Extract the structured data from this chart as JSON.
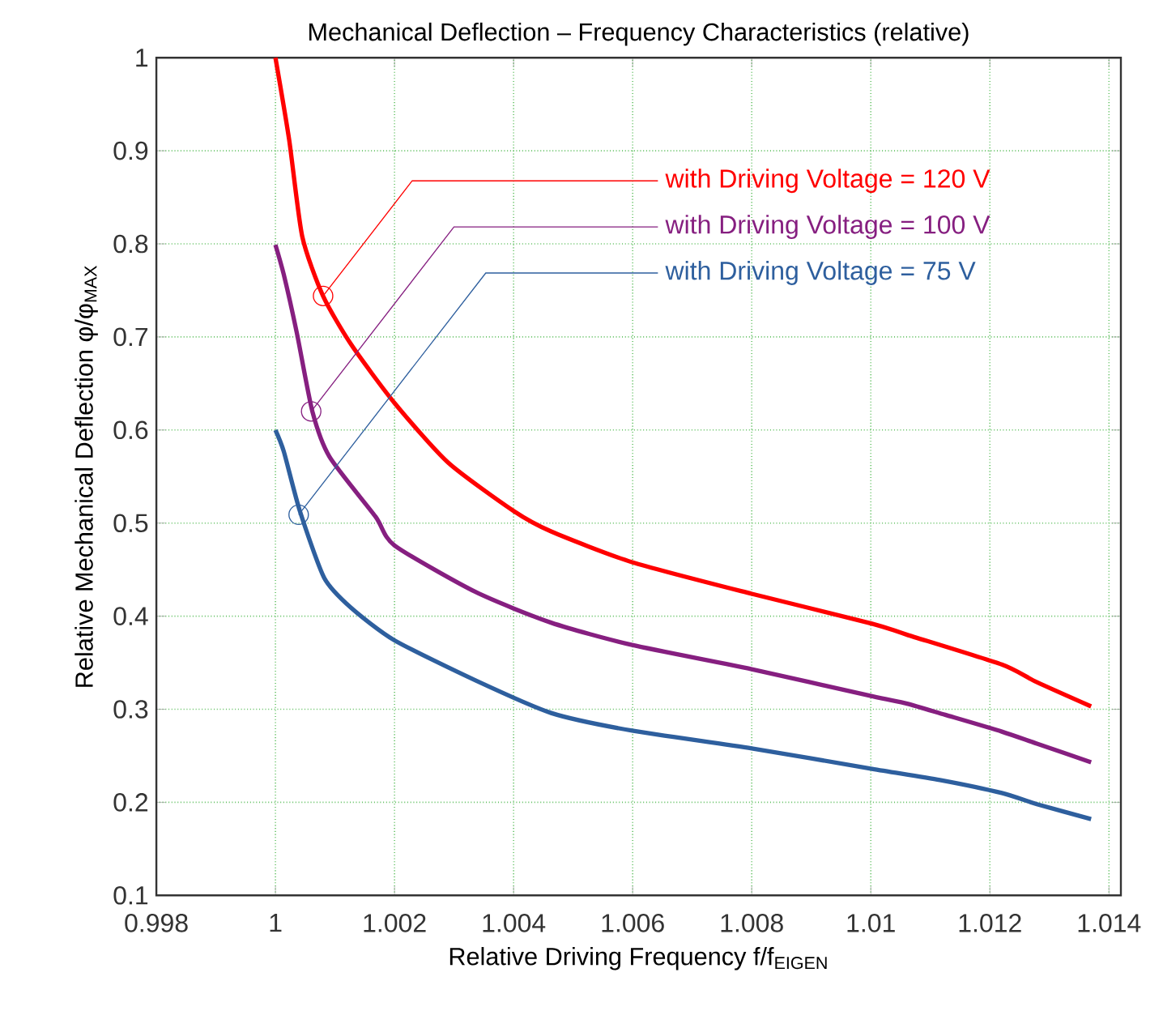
{
  "chart_data": {
    "type": "line",
    "title": "Mechanical Deflection – Frequency Characteristics (relative)",
    "xlabel": "Relative Driving Frequency f/f$_{EIGEN}$",
    "ylabel": "Relative Mechanical Deflection φ/φ$_{MAX}$",
    "xlim": [
      0.998,
      1.0142
    ],
    "ylim": [
      0.1,
      1
    ],
    "xticks": [
      0.998,
      1,
      1.002,
      1.004,
      1.006,
      1.008,
      1.01,
      1.012,
      1.014
    ],
    "yticks": [
      0.1,
      0.2,
      0.3,
      0.4,
      0.5,
      0.6,
      0.7,
      0.8,
      0.9,
      1
    ],
    "grid": true,
    "marker": "none",
    "line_style": "solid",
    "series": [
      {
        "color": "#ff0000",
        "x": [
          1.0,
          1.00023,
          1.00045,
          1.0008,
          1.00127,
          1.002,
          1.0029,
          1.004,
          1.00463,
          1.00599,
          1.008,
          1.01002,
          1.01061,
          1.0122,
          1.01279,
          1.0137
        ],
        "values": [
          1.0,
          0.912,
          0.808,
          0.744,
          0.692,
          0.629,
          0.565,
          0.513,
          0.491,
          0.458,
          0.424,
          0.392,
          0.38,
          0.348,
          0.329,
          0.303
        ]
      },
      {
        "color": "#861f80",
        "x": [
          1.0,
          1.00014,
          1.00036,
          1.00062,
          1.00091,
          1.00168,
          1.002,
          1.00336,
          1.00463,
          1.00599,
          1.008,
          1.01002,
          1.01061,
          1.01125,
          1.0122,
          1.01279,
          1.0137
        ],
        "values": [
          0.799,
          0.767,
          0.704,
          0.62,
          0.571,
          0.507,
          0.476,
          0.426,
          0.393,
          0.369,
          0.343,
          0.314,
          0.306,
          0.294,
          0.276,
          0.263,
          0.243
        ]
      },
      {
        "color": "#2e5f9e",
        "x": [
          1.0,
          1.00014,
          1.00041,
          1.00082,
          1.00127,
          1.002,
          1.00336,
          1.00463,
          1.00599,
          1.008,
          1.01002,
          1.01116,
          1.0122,
          1.01279,
          1.0137
        ],
        "values": [
          0.6,
          0.577,
          0.513,
          0.441,
          0.409,
          0.374,
          0.331,
          0.296,
          0.277,
          0.258,
          0.236,
          0.224,
          0.21,
          0.198,
          0.182
        ]
      }
    ],
    "annotations": [
      {
        "text": "with Driving Voltage = 120 V",
        "x": 1.0008,
        "y": 0.744
      },
      {
        "text": "with Driving Voltage = 100 V",
        "x": 1.0006,
        "y": 0.62
      },
      {
        "text": "with Driving Voltage = 75 V",
        "x": 1.00039,
        "y": 0.509
      }
    ]
  }
}
